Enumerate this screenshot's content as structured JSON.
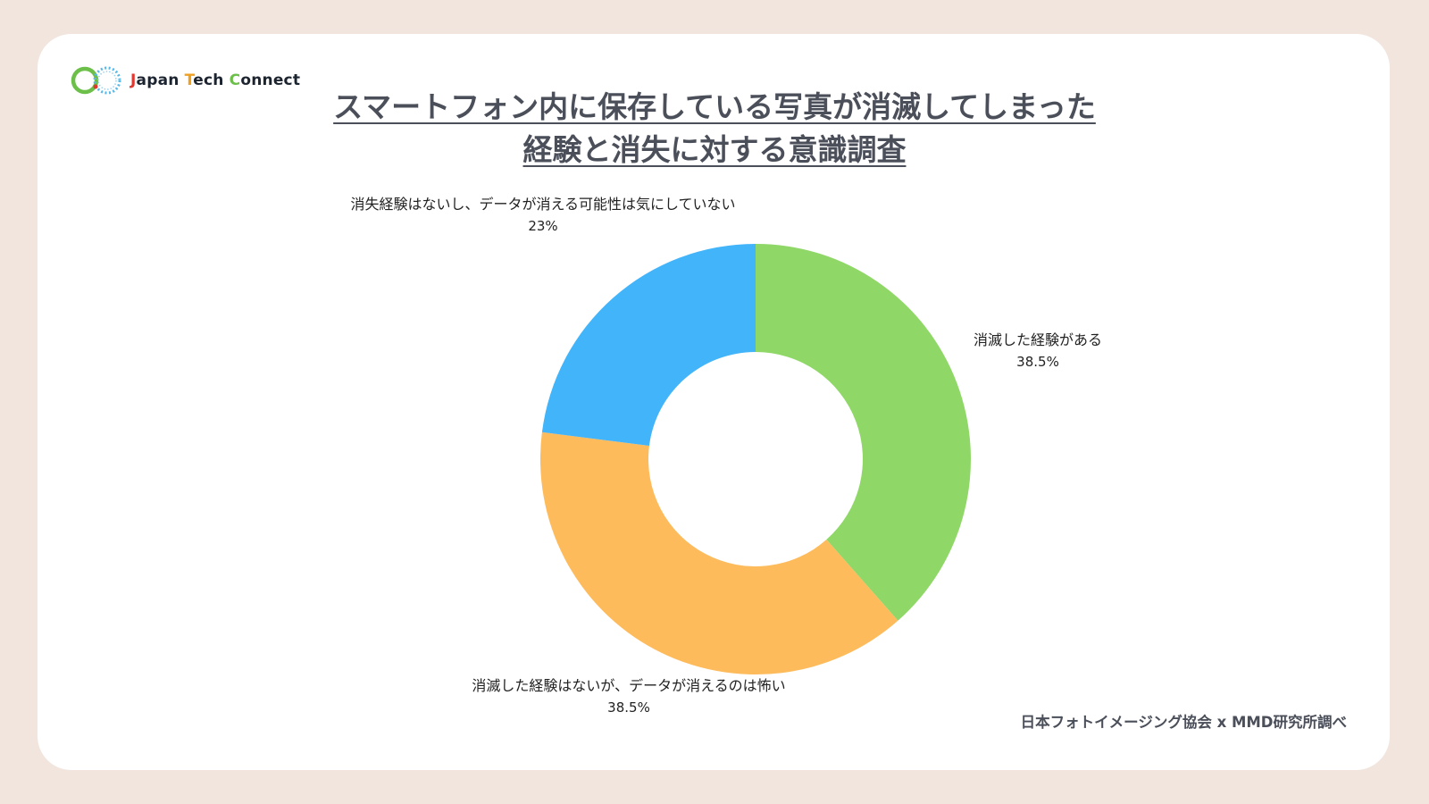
{
  "logo": {
    "j": "J",
    "part1": "apan ",
    "t": "T",
    "part2": "ech ",
    "c": "C",
    "part3": "onnect"
  },
  "title": {
    "line1": "スマートフォン内に保存している写真が消滅してしまった",
    "line2": "経験と消失に対する意識調査"
  },
  "chart_data": {
    "type": "pie",
    "donut": true,
    "start": "top, clockwise",
    "categories": [
      "消滅した経験がある",
      "消滅した経験はないが、データが消えるのは怖い",
      "消失経験はないし、データが消える可能性は気にしていない"
    ],
    "values": [
      38.5,
      38.5,
      23
    ],
    "value_labels": [
      "38.5%",
      "38.5%",
      "23%"
    ],
    "colors": [
      "#8fd868",
      "#fdbb5c",
      "#42b4fa"
    ]
  },
  "source": "日本フォトイメージング協会 x MMD研究所調べ"
}
